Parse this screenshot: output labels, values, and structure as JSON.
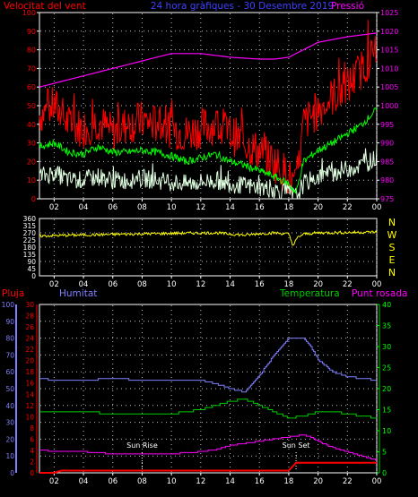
{
  "title": "24 hora gràfiques - 30 Desembre 2019",
  "colors": {
    "background": "#000000",
    "frame": "#ffffff",
    "grid": "#bfbfbf",
    "wind": "#ff0000",
    "gust": "#ff0000",
    "wind_avg": "#00ff00",
    "wind_low": "#e0ffe0",
    "pressure": "#ff00ff",
    "direction": "#ffff00",
    "humidity": "#8080ff",
    "temperature": "#00cc00",
    "dewpoint": "#ff00ff",
    "rain": "#ff0000",
    "blue_text": "#4040ff"
  },
  "chart_data": [
    {
      "type": "line",
      "name": "wind-pressure",
      "labels": {
        "left": "Velocitat del vent",
        "center": "24 hora gràfiques - 30 Desembre 2019",
        "right": "Pressió"
      },
      "x_ticks": [
        "02",
        "04",
        "06",
        "08",
        "10",
        "12",
        "14",
        "16",
        "18",
        "20",
        "22",
        "00"
      ],
      "x_range": [
        1,
        24
      ],
      "y_left": {
        "range": [
          0,
          100
        ],
        "ticks": [
          0,
          10,
          20,
          30,
          40,
          50,
          60,
          70,
          80,
          90,
          100
        ]
      },
      "y_right": {
        "range": [
          975,
          1025
        ],
        "ticks": [
          975,
          980,
          985,
          990,
          995,
          1000,
          1005,
          1010,
          1015,
          1020,
          1025
        ]
      },
      "series": [
        {
          "key": "gust",
          "axis": "left",
          "x": [
            1,
            2,
            3,
            4,
            5,
            6,
            7,
            8,
            9,
            10,
            11,
            12,
            13,
            14,
            15,
            16,
            17,
            18,
            18.5,
            19,
            20,
            21,
            22,
            23,
            24
          ],
          "y": [
            45,
            50,
            40,
            38,
            42,
            35,
            40,
            42,
            40,
            38,
            35,
            38,
            40,
            35,
            30,
            25,
            20,
            12,
            5,
            40,
            48,
            55,
            60,
            70,
            80
          ]
        },
        {
          "key": "wind_avg",
          "axis": "left",
          "x": [
            1,
            2,
            3,
            4,
            5,
            6,
            7,
            8,
            9,
            10,
            11,
            12,
            13,
            14,
            15,
            16,
            17,
            18,
            18.5,
            19,
            20,
            21,
            22,
            23,
            24
          ],
          "y": [
            28,
            30,
            25,
            24,
            28,
            25,
            25,
            26,
            25,
            23,
            20,
            22,
            24,
            20,
            18,
            15,
            12,
            8,
            3,
            20,
            26,
            30,
            35,
            40,
            48
          ]
        },
        {
          "key": "wind_low",
          "axis": "left",
          "x": [
            1,
            2,
            3,
            4,
            5,
            6,
            7,
            8,
            9,
            10,
            11,
            12,
            13,
            14,
            15,
            16,
            17,
            18,
            18.5,
            19,
            20,
            21,
            22,
            23,
            24
          ],
          "y": [
            12,
            14,
            10,
            10,
            12,
            10,
            10,
            11,
            10,
            9,
            8,
            9,
            10,
            8,
            7,
            6,
            5,
            3,
            1,
            8,
            12,
            14,
            16,
            18,
            22
          ]
        },
        {
          "key": "pressure",
          "axis": "right",
          "x": [
            1,
            2,
            4,
            6,
            8,
            10,
            12,
            14,
            16,
            17,
            18,
            19,
            20,
            22,
            24
          ],
          "y": [
            1005,
            1006,
            1008,
            1010,
            1012,
            1014,
            1014,
            1013,
            1012.5,
            1012.5,
            1013,
            1015,
            1017,
            1018.5,
            1019.5
          ]
        }
      ]
    },
    {
      "type": "line",
      "name": "wind-direction",
      "labels": {
        "right": [
          "N",
          "W",
          "S",
          "E",
          "N"
        ]
      },
      "x_ticks": [
        "02",
        "04",
        "06",
        "08",
        "10",
        "12",
        "14",
        "16",
        "18",
        "20",
        "22",
        "00"
      ],
      "x_range": [
        1,
        24
      ],
      "y_left": {
        "range": [
          0,
          360
        ],
        "ticks": [
          0,
          45,
          90,
          135,
          180,
          225,
          270,
          315,
          360
        ]
      },
      "series": [
        {
          "key": "direction",
          "x": [
            1,
            3,
            5,
            7,
            9,
            11,
            13,
            15,
            16,
            17,
            18,
            18.3,
            18.6,
            19,
            20,
            22,
            24
          ],
          "y": [
            250,
            255,
            258,
            262,
            265,
            268,
            270,
            255,
            265,
            270,
            262,
            190,
            240,
            262,
            270,
            272,
            275
          ]
        }
      ]
    },
    {
      "type": "line",
      "name": "humidity-temperature",
      "labels": {
        "rain": "Pluja",
        "humidity": "Humitat",
        "temperature": "Temperatura",
        "dewpoint": "Punt rosada",
        "sunrise": "Sun Rise",
        "sunset": "Sun Set"
      },
      "x_ticks": [
        "02",
        "04",
        "06",
        "08",
        "10",
        "12",
        "14",
        "16",
        "18",
        "20",
        "22",
        "00"
      ],
      "x_range": [
        1,
        24
      ],
      "y_rain": {
        "range": [
          0,
          30
        ],
        "ticks": [
          0,
          2,
          4,
          6,
          8,
          10,
          12,
          14,
          16,
          18,
          20,
          22,
          24,
          26,
          28,
          30
        ]
      },
      "y_humidity": {
        "range": [
          0,
          100
        ],
        "ticks": [
          0,
          10,
          20,
          30,
          40,
          50,
          60,
          70,
          80,
          90,
          100
        ]
      },
      "y_temperature": {
        "range": [
          0,
          40
        ],
        "ticks": [
          0,
          5,
          10,
          15,
          20,
          25,
          30,
          35,
          40
        ]
      },
      "sunrise_hour": 8,
      "sunset_hour": 18.5,
      "series": [
        {
          "key": "humidity",
          "axis": "humidity",
          "x": [
            1,
            2,
            4,
            6,
            8,
            10,
            12,
            13,
            14,
            15,
            16,
            17,
            18,
            19,
            19.5,
            20,
            21,
            22,
            23,
            24
          ],
          "y": [
            56,
            55,
            55,
            56,
            55,
            55,
            55,
            53,
            50,
            48,
            58,
            70,
            80,
            80,
            75,
            67,
            60,
            57,
            56,
            55
          ]
        },
        {
          "key": "temperature",
          "axis": "temperature",
          "x": [
            1,
            2,
            4,
            6,
            8,
            10,
            12,
            13,
            14,
            15,
            16,
            17,
            18,
            19,
            19.5,
            20,
            21,
            22,
            23,
            24
          ],
          "y": [
            14.5,
            14.5,
            14.5,
            14,
            14,
            14,
            15,
            16,
            17,
            17.5,
            16,
            14.5,
            13,
            13.5,
            14,
            14.5,
            14.5,
            14,
            13.5,
            13
          ]
        },
        {
          "key": "dewpoint",
          "axis": "temperature",
          "x": [
            1,
            2,
            4,
            6,
            8,
            10,
            12,
            13,
            14,
            15,
            16,
            17,
            18,
            19,
            19.5,
            20,
            21,
            22,
            23,
            24
          ],
          "y": [
            5.5,
            5,
            5,
            4.5,
            4.5,
            4.5,
            5,
            5.5,
            6.5,
            7,
            7.5,
            8,
            8.5,
            9,
            8.5,
            7.5,
            6,
            5,
            4,
            3
          ]
        },
        {
          "key": "rain",
          "axis": "rain",
          "x": [
            1,
            2,
            2.5,
            18,
            18.5,
            24
          ],
          "y": [
            0,
            0,
            0.4,
            0.4,
            1.8,
            1.8
          ]
        }
      ]
    }
  ]
}
